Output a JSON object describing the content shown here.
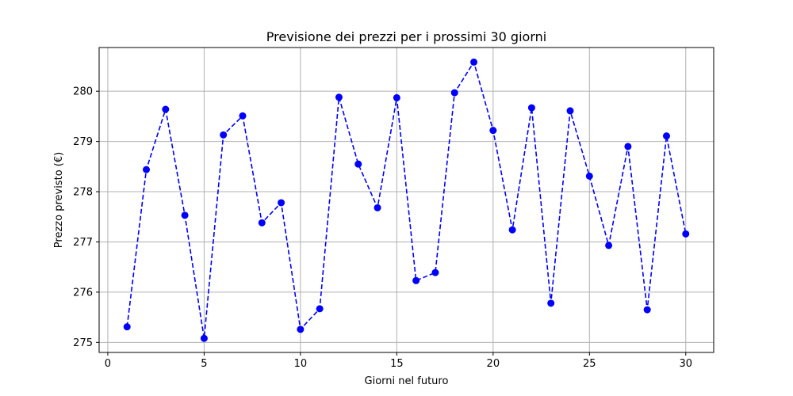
{
  "chart_data": {
    "type": "line",
    "title": "Previsione dei prezzi per i prossimi 30 giorni",
    "xlabel": "Giorni nel futuro",
    "ylabel": "Prezzo previsto (€)",
    "xlim": [
      -0.45,
      31.45
    ],
    "ylim": [
      274.8,
      280.87
    ],
    "xticks": [
      0,
      5,
      10,
      15,
      20,
      25,
      30
    ],
    "yticks": [
      275,
      276,
      277,
      278,
      279,
      280
    ],
    "grid": true,
    "series": [
      {
        "color": "#0000ff",
        "line_style": "dashed",
        "marker": "circle",
        "x": [
          1,
          2,
          3,
          4,
          5,
          6,
          7,
          8,
          9,
          10,
          11,
          12,
          13,
          14,
          15,
          16,
          17,
          18,
          19,
          20,
          21,
          22,
          23,
          24,
          25,
          26,
          27,
          28,
          29,
          30
        ],
        "values": [
          275.31,
          278.44,
          279.64,
          277.53,
          275.08,
          279.13,
          279.51,
          277.38,
          277.78,
          275.26,
          275.67,
          279.88,
          278.55,
          277.68,
          279.87,
          276.23,
          276.39,
          279.97,
          280.58,
          279.22,
          277.24,
          279.67,
          275.78,
          279.61,
          278.31,
          276.93,
          278.9,
          275.65,
          279.11,
          277.16
        ]
      }
    ]
  }
}
